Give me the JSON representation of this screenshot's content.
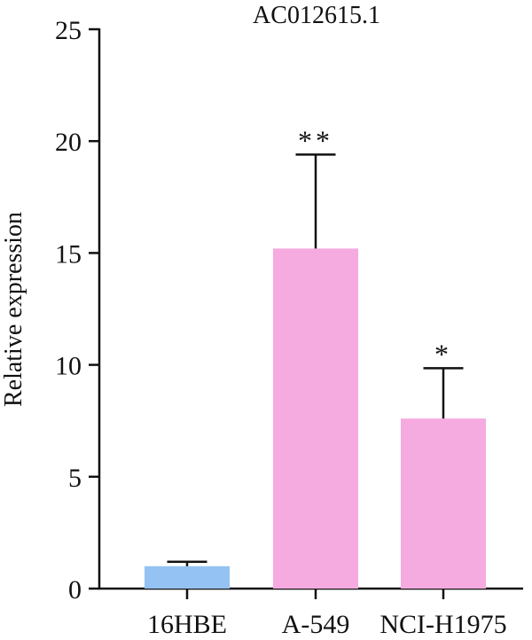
{
  "chart_data": {
    "type": "bar",
    "title": "AC012615.1",
    "xlabel": "",
    "ylabel": "Relative expression",
    "ylim": [
      0,
      25
    ],
    "yticks": [
      0,
      5,
      10,
      15,
      20,
      25
    ],
    "categories": [
      "16HBE",
      "A-549",
      "NCI-H1975"
    ],
    "values": [
      1.0,
      15.2,
      7.6
    ],
    "error_upper": [
      1.2,
      19.4,
      9.85
    ],
    "significance": [
      "",
      "**",
      "*"
    ],
    "bar_colors": [
      "#94c2f2",
      "#f5aae0",
      "#f5aae0"
    ],
    "grid": false,
    "legend": "none"
  }
}
